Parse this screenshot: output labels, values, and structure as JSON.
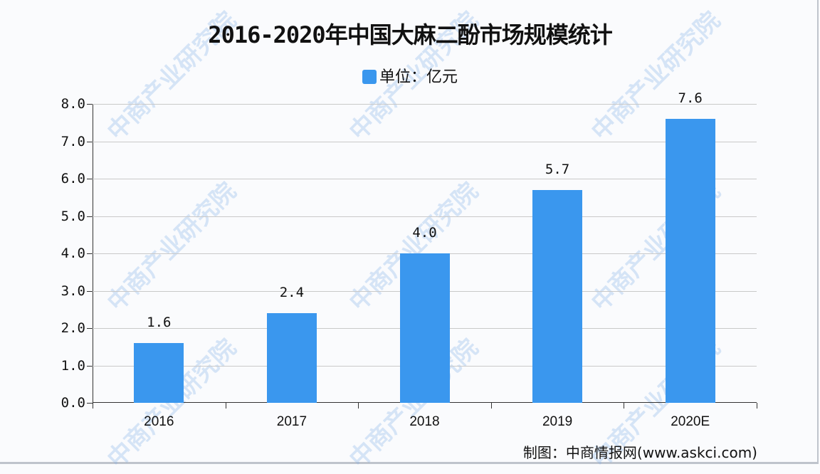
{
  "title": "2016-2020年中国大麻二酚市场规模统计",
  "legend": {
    "label": "单位：亿元",
    "color": "#3a97ee"
  },
  "source": "制图：中商情报网(www.askci.com)",
  "watermark": "中商产业研究院",
  "y_ticks": [
    "0.0",
    "1.0",
    "2.0",
    "3.0",
    "4.0",
    "5.0",
    "6.0",
    "7.0",
    "8.0"
  ],
  "bars": [
    {
      "label": "2016",
      "value": 1.6,
      "display": "1.6"
    },
    {
      "label": "2017",
      "value": 2.4,
      "display": "2.4"
    },
    {
      "label": "2018",
      "value": 4.0,
      "display": "4.0"
    },
    {
      "label": "2019",
      "value": 5.7,
      "display": "5.7"
    },
    {
      "label": "2020E",
      "value": 7.6,
      "display": "7.6"
    }
  ],
  "chart_data": {
    "type": "bar",
    "title": "2016-2020年中国大麻二酚市场规模统计",
    "categories": [
      "2016",
      "2017",
      "2018",
      "2019",
      "2020E"
    ],
    "series": [
      {
        "name": "单位：亿元",
        "values": [
          1.6,
          2.4,
          4.0,
          5.7,
          7.6
        ]
      }
    ],
    "xlabel": "",
    "ylabel": "",
    "ylim": [
      0,
      8
    ],
    "yticks": [
      0,
      1,
      2,
      3,
      4,
      5,
      6,
      7,
      8
    ],
    "grid": true,
    "legend_position": "top",
    "bar_color": "#3a97ee",
    "source": "制图：中商情报网(www.askci.com)"
  }
}
